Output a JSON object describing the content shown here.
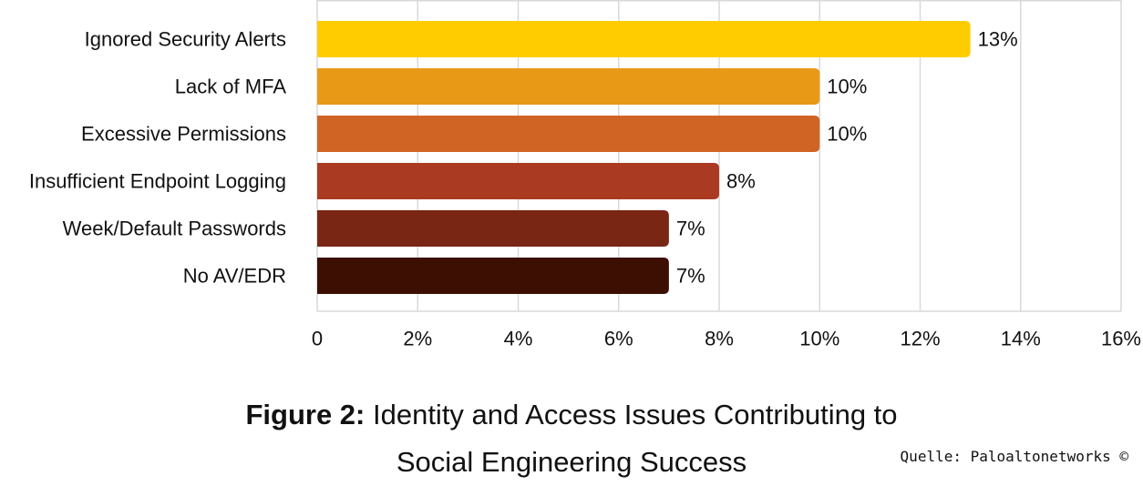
{
  "chart_data": {
    "type": "bar",
    "orientation": "horizontal",
    "categories": [
      "Ignored Security Alerts",
      "Lack of MFA",
      "Excessive Permissions",
      "Insufficient Endpoint Logging",
      "Week/Default Passwords",
      "No AV/EDR"
    ],
    "values": [
      13,
      10,
      10,
      8,
      7,
      7
    ],
    "data_labels": [
      "13%",
      "10%",
      "10%",
      "8%",
      "7%",
      "7%"
    ],
    "colors": [
      "#FFCC00",
      "#E89A17",
      "#D06424",
      "#AA3B22",
      "#7A2615",
      "#3D0F02"
    ],
    "xlim": [
      0,
      16
    ],
    "xticks": [
      0,
      2,
      4,
      6,
      8,
      10,
      12,
      14,
      16
    ],
    "xtick_labels": [
      "0",
      "2%",
      "4%",
      "6%",
      "8%",
      "10%",
      "12%",
      "14%",
      "16%"
    ],
    "grid": "vertical",
    "legend": "none"
  },
  "caption": {
    "prefix": "Figure 2:",
    "line1": "Identity and Access Issues Contributing to",
    "line2": "Social Engineering Success"
  },
  "source": "Quelle: Paloaltonetworks ©"
}
